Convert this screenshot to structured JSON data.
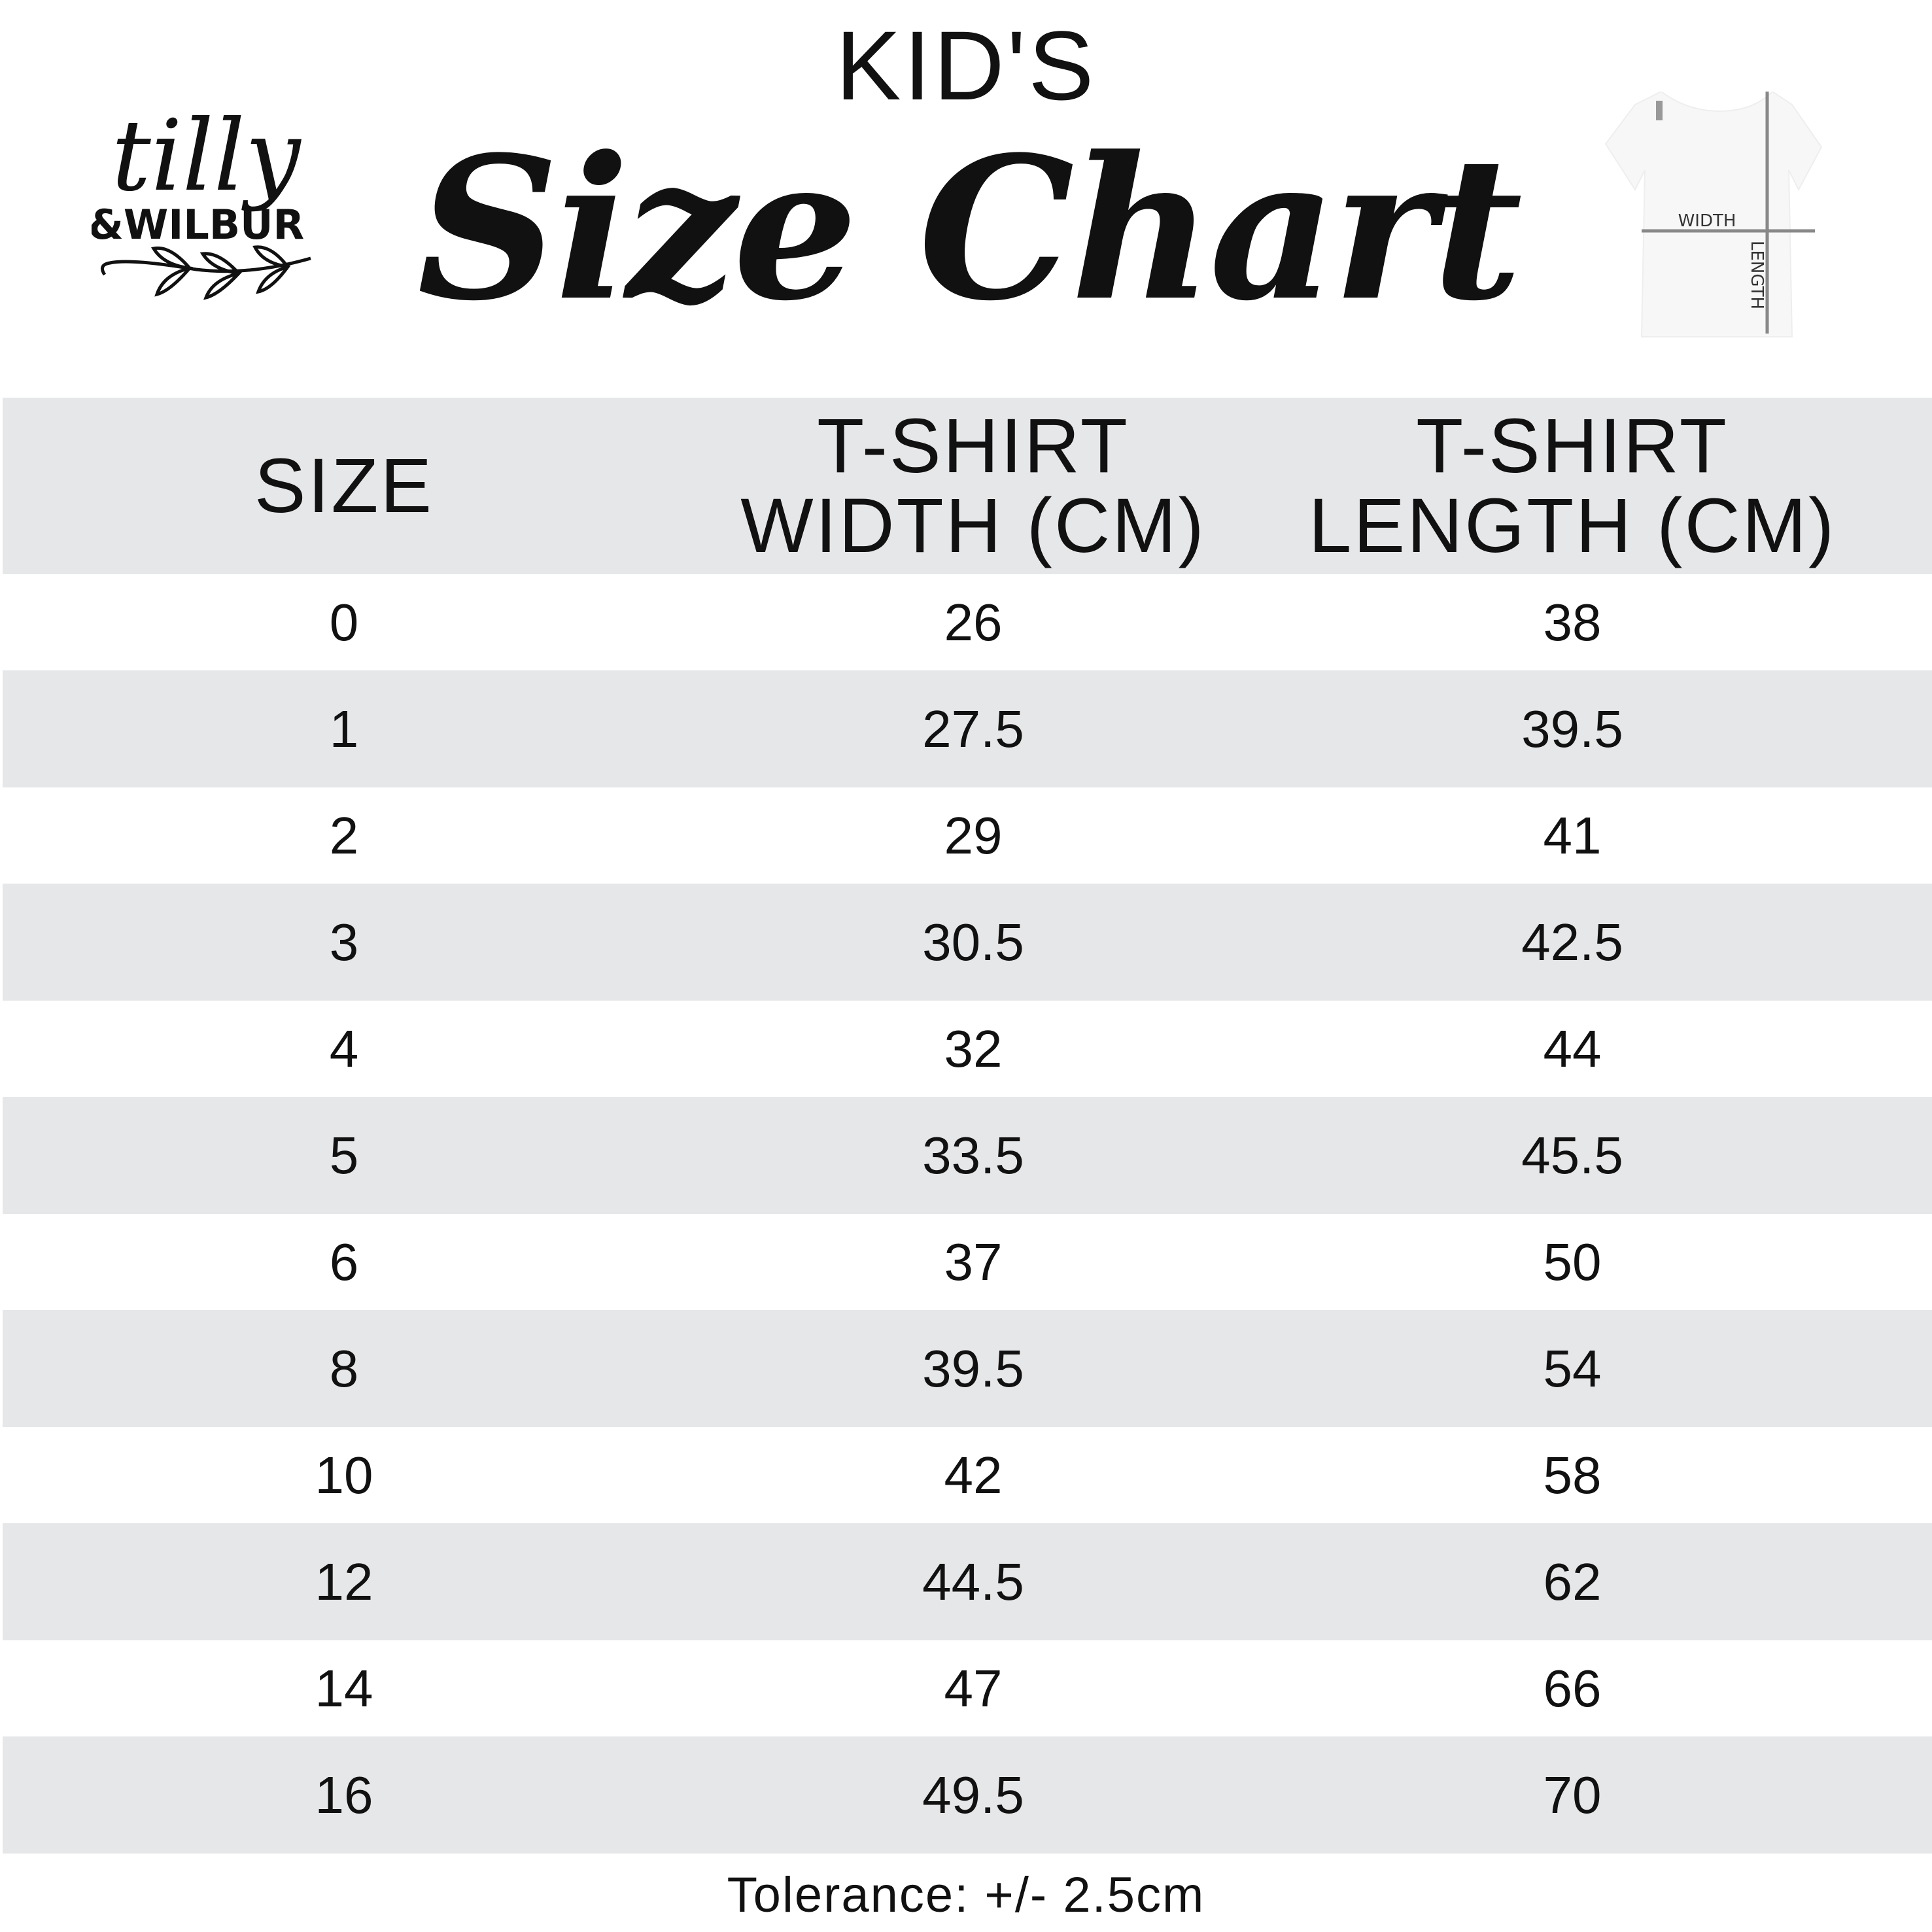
{
  "header": {
    "kicker": "KID'S",
    "title": "Size Chart",
    "logo_text": {
      "line1": "tilly",
      "line2": "&WILBUR"
    },
    "diagram_labels": {
      "width": "WIDTH",
      "length": "LENGTH"
    }
  },
  "table": {
    "columns": [
      "SIZE",
      "T-SHIRT WIDTH (CM)",
      "T-SHIRT LENGTH (CM)"
    ],
    "column_lines": [
      [
        "SIZE"
      ],
      [
        "T-SHIRT",
        "WIDTH (CM)"
      ],
      [
        "T-SHIRT",
        "LENGTH (CM)"
      ]
    ],
    "rows": [
      [
        "0",
        "26",
        "38"
      ],
      [
        "1",
        "27.5",
        "39.5"
      ],
      [
        "2",
        "29",
        "41"
      ],
      [
        "3",
        "30.5",
        "42.5"
      ],
      [
        "4",
        "32",
        "44"
      ],
      [
        "5",
        "33.5",
        "45.5"
      ],
      [
        "6",
        "37",
        "50"
      ],
      [
        "8",
        "39.5",
        "54"
      ],
      [
        "10",
        "42",
        "58"
      ],
      [
        "12",
        "44.5",
        "62"
      ],
      [
        "14",
        "47",
        "66"
      ],
      [
        "16",
        "49.5",
        "70"
      ]
    ],
    "stripe_color": "#e6e7e9"
  },
  "footer": {
    "tolerance": "Tolerance: +/- 2.5cm"
  }
}
